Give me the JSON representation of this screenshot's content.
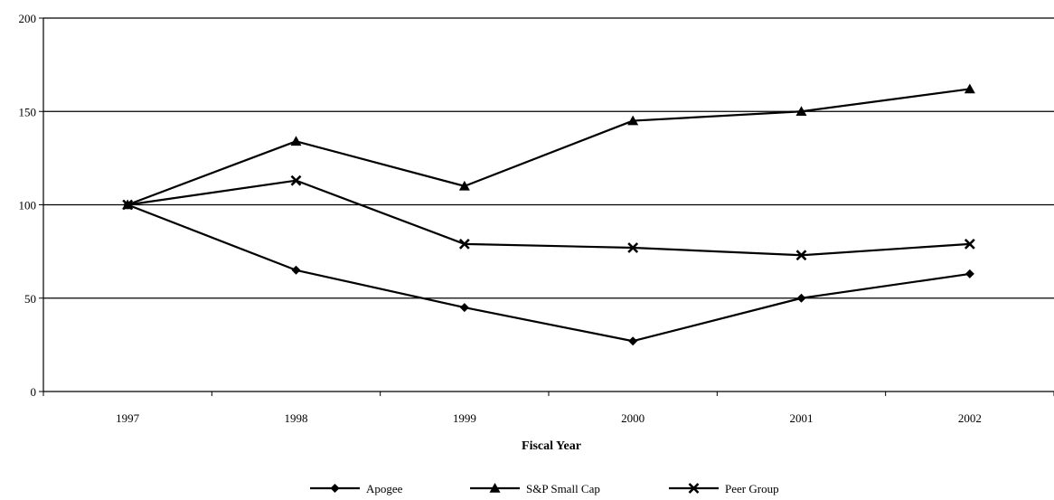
{
  "chart_data": {
    "type": "line",
    "title": "",
    "xlabel": "Fiscal Year",
    "ylabel": "",
    "categories": [
      "1997",
      "1998",
      "1999",
      "2000",
      "2001",
      "2002"
    ],
    "ylim": [
      0,
      200
    ],
    "yticks": [
      0,
      50,
      100,
      150,
      200
    ],
    "grid": "horizontal",
    "legend_position": "bottom",
    "series": [
      {
        "name": "Apogee",
        "marker": "diamond",
        "values": [
          100,
          65,
          45,
          27,
          50,
          63
        ]
      },
      {
        "name": "S&P Small Cap",
        "marker": "triangle",
        "values": [
          100,
          134,
          110,
          145,
          150,
          162
        ]
      },
      {
        "name": "Peer Group",
        "marker": "x",
        "values": [
          100,
          113,
          79,
          77,
          73,
          79
        ]
      }
    ],
    "colors": {
      "line": "#000000",
      "grid": "#000000",
      "background": "#ffffff"
    }
  }
}
